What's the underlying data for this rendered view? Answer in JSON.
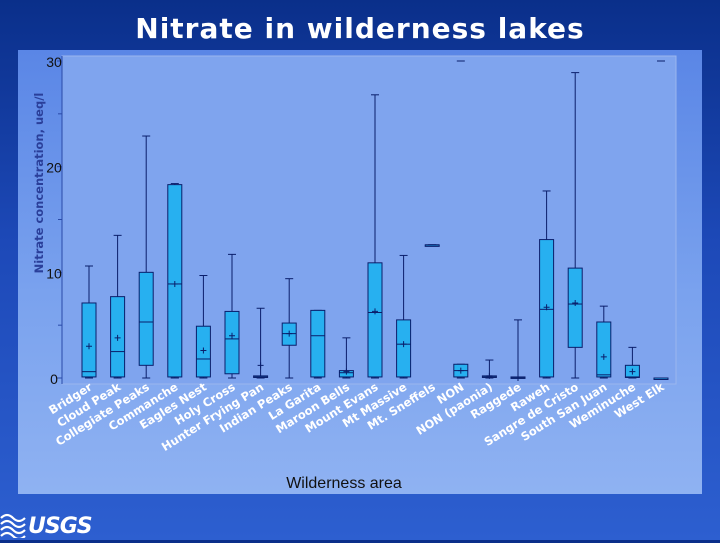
{
  "slide": {
    "title": "Nitrate in wilderness lakes",
    "logo_text": "USGS"
  },
  "colors": {
    "background": "#1a44b0",
    "plot_area": "#7fa4ee",
    "box_fill": "#27b0f0",
    "box_stroke": "#0a1e6b",
    "whisker": "#0a1e6b",
    "title_text": "#ffffff"
  },
  "chart_data": {
    "type": "boxplot",
    "title": "Nitrate in wilderness lakes",
    "xlabel": "Wilderness area",
    "ylabel": "Nitrate concentration, ueq/l",
    "ylim": [
      0,
      30
    ],
    "yticks": [
      0,
      10,
      20,
      30
    ],
    "grid": false,
    "categories": [
      "Bridger",
      "Cloud Peak",
      "Collegiate Peaks",
      "Commanche",
      "Eagles Nest",
      "Holy Cross",
      "Hunter Frying Pan",
      "Indian Peaks",
      "La Garita",
      "Maroon Bells",
      "Mount Evans",
      "Mt Massive",
      "Mt. Sneffels",
      "NON",
      "NON (paonia)",
      "Raggede",
      "Raweh",
      "Sangre de Cristo",
      "South San Juan",
      "Weminuche",
      "West Elk"
    ],
    "boxes": [
      {
        "min": 0.0,
        "q1": 0.1,
        "median": 0.6,
        "q3": 7.1,
        "max": 10.6,
        "mean": 3.0
      },
      {
        "min": 0.0,
        "q1": 0.1,
        "median": 2.5,
        "q3": 7.7,
        "max": 13.5,
        "mean": 3.8
      },
      {
        "min": 0.0,
        "q1": 1.2,
        "median": 5.3,
        "q3": 10.0,
        "max": 22.9,
        "mean": null
      },
      {
        "min": 0.0,
        "q1": 0.1,
        "median": 8.9,
        "q3": 18.3,
        "max": 18.4,
        "mean": 8.9
      },
      {
        "min": 0.0,
        "q1": 0.1,
        "median": 1.8,
        "q3": 4.9,
        "max": 9.7,
        "mean": 2.6
      },
      {
        "min": 0.0,
        "q1": 0.4,
        "median": 3.7,
        "q3": 6.3,
        "max": 11.7,
        "mean": 4.0
      },
      {
        "min": 0.0,
        "q1": 0.05,
        "median": 0.1,
        "q3": 0.2,
        "max": 6.6,
        "mean": 1.2
      },
      {
        "min": 0.0,
        "q1": 3.1,
        "median": 4.2,
        "q3": 5.2,
        "max": 9.4,
        "mean": 4.2
      },
      {
        "min": 0.0,
        "q1": 0.1,
        "median": 4.0,
        "q3": 6.4,
        "max": 6.4,
        "mean": null
      },
      {
        "min": 0.0,
        "q1": 0.1,
        "median": 0.5,
        "q3": 0.7,
        "max": 3.8,
        "mean": 0.6
      },
      {
        "min": 0.0,
        "q1": 0.1,
        "median": 6.2,
        "q3": 10.9,
        "max": 26.8,
        "mean": 6.3
      },
      {
        "min": 0.0,
        "q1": 0.1,
        "median": 3.2,
        "q3": 5.5,
        "max": 11.6,
        "mean": 3.2
      },
      {
        "min": 12.6,
        "q1": 12.6,
        "median": 12.6,
        "q3": 12.6,
        "max": 12.6,
        "mean": null
      },
      {
        "min": 0.0,
        "q1": 0.1,
        "median": 0.7,
        "q3": 1.3,
        "max": 1.3,
        "mean": 0.7
      },
      {
        "min": 0.0,
        "q1": 0.05,
        "median": 0.1,
        "q3": 0.2,
        "max": 1.7,
        "mean": 0.2
      },
      {
        "min": 0.0,
        "q1": 0.0,
        "median": 0.0,
        "q3": 0.1,
        "max": 5.5,
        "mean": 0.0
      },
      {
        "min": 0.0,
        "q1": 0.1,
        "median": 6.5,
        "q3": 13.1,
        "max": 17.7,
        "mean": 6.7
      },
      {
        "min": 0.0,
        "q1": 2.9,
        "median": 7.0,
        "q3": 10.4,
        "max": 28.9,
        "mean": 7.1
      },
      {
        "min": 0.0,
        "q1": 0.1,
        "median": 0.3,
        "q3": 5.3,
        "max": 6.8,
        "mean": 2.0
      },
      {
        "min": 0.0,
        "q1": 0.05,
        "median": 0.1,
        "q3": 1.2,
        "max": 2.9,
        "mean": 0.6
      },
      {
        "min": 0.0,
        "q1": 0.0,
        "median": 0.0,
        "q3": 0.0,
        "max": 0.0,
        "mean": null
      }
    ],
    "extra_points": [
      {
        "category": "Commanche",
        "value": 0.0
      },
      {
        "category": "NON",
        "value": 30.0
      },
      {
        "category": "West Elk",
        "value": 30.0
      }
    ]
  }
}
